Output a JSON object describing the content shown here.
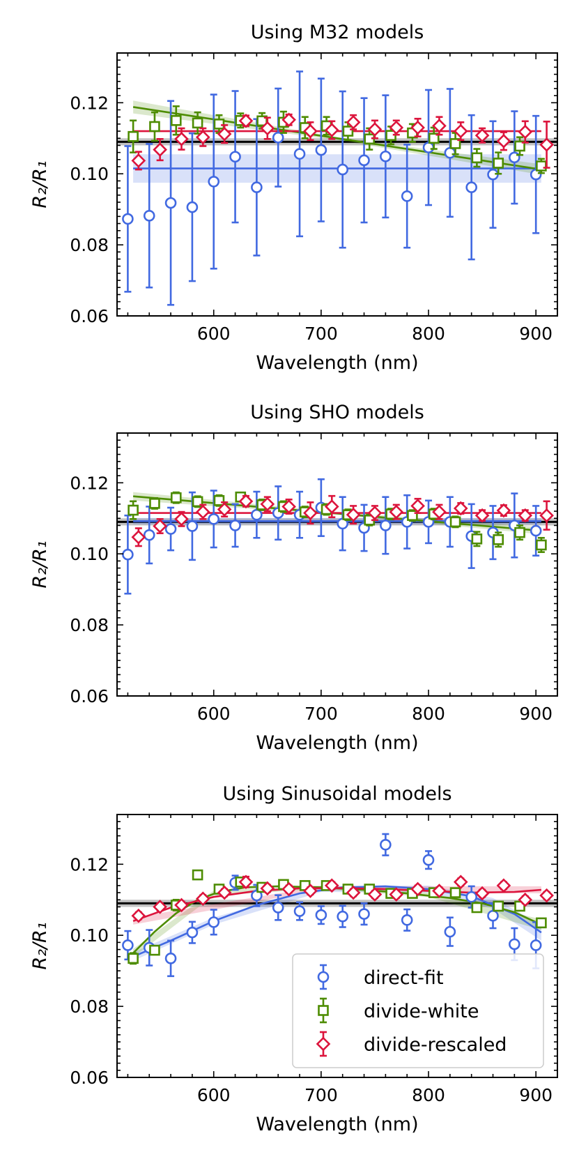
{
  "chart_data": [
    {
      "type": "scatter",
      "title": "Using M32 models",
      "xlabel": "Wavelength (nm)",
      "ylabel": "R2/R1",
      "xlim": [
        510,
        920
      ],
      "ylim": [
        0.06,
        0.134
      ],
      "xticks": [
        600,
        700,
        800,
        900
      ],
      "yticks": [
        0.06,
        0.08,
        0.1,
        0.12
      ],
      "ytick_labels": [
        "0.06",
        "0.08",
        "0.10",
        "0.12"
      ],
      "reference": {
        "value": 0.109,
        "band": [
          0.108,
          0.11
        ]
      },
      "series": [
        {
          "name": "direct-fit",
          "marker": "circle",
          "color": "#4169e1",
          "x": [
            520,
            540,
            560,
            580,
            600,
            620,
            640,
            660,
            680,
            700,
            720,
            740,
            760,
            780,
            800,
            820,
            840,
            860,
            880,
            900
          ],
          "y": [
            0.0873,
            0.0882,
            0.0918,
            0.0906,
            0.0978,
            0.1048,
            0.0962,
            0.1102,
            0.1056,
            0.1067,
            0.1012,
            0.1038,
            0.1049,
            0.0937,
            0.1074,
            0.1059,
            0.0962,
            0.0998,
            0.1046,
            0.0998
          ],
          "err": [
            0.0205,
            0.0202,
            0.0287,
            0.0208,
            0.0245,
            0.0185,
            0.0192,
            0.0138,
            0.0232,
            0.0201,
            0.022,
            0.0175,
            0.0172,
            0.0145,
            0.0162,
            0.018,
            0.0203,
            0.015,
            0.013,
            0.0165
          ],
          "fit": {
            "x": [
              525,
              905
            ],
            "y": [
              0.1015,
              0.1015
            ]
          },
          "band": {
            "x": [
              525,
              905
            ],
            "lo": [
              0.0975,
              0.0975
            ],
            "hi": [
              0.1055,
              0.1055
            ]
          }
        },
        {
          "name": "divide-white",
          "marker": "square",
          "color": "#4d8c00",
          "x": [
            525,
            545,
            565,
            585,
            605,
            625,
            645,
            665,
            685,
            705,
            725,
            745,
            765,
            785,
            805,
            825,
            845,
            865,
            885,
            905
          ],
          "y": [
            0.1105,
            0.1133,
            0.115,
            0.1143,
            0.114,
            0.115,
            0.1149,
            0.1145,
            0.113,
            0.1135,
            0.112,
            0.1098,
            0.1108,
            0.1115,
            0.11,
            0.1085,
            0.1045,
            0.103,
            0.1078,
            0.1022
          ],
          "err": [
            0.0045,
            0.004,
            0.004,
            0.003,
            0.0025,
            0.002,
            0.0022,
            0.003,
            0.003,
            0.0025,
            0.0025,
            0.003,
            0.0025,
            0.0025,
            0.003,
            0.003,
            0.0025,
            0.003,
            0.0025,
            0.002
          ],
          "fit": {
            "x": [
              525,
              905
            ],
            "y": [
              0.1188,
              0.1012
            ]
          },
          "band": {
            "x": [
              525,
              715,
              905
            ],
            "lo": [
              0.117,
              0.1095,
              0.0997
            ],
            "hi": [
              0.1206,
              0.1103,
              0.1027
            ]
          }
        },
        {
          "name": "divide-rescaled",
          "marker": "diamond",
          "color": "#dc143c",
          "x": [
            530,
            550,
            570,
            590,
            610,
            630,
            650,
            670,
            690,
            710,
            730,
            750,
            770,
            790,
            810,
            830,
            850,
            870,
            890,
            910
          ],
          "y": [
            0.1037,
            0.1068,
            0.1098,
            0.1103,
            0.1112,
            0.1149,
            0.1128,
            0.1152,
            0.112,
            0.1123,
            0.1145,
            0.1125,
            0.113,
            0.113,
            0.1135,
            0.112,
            0.1108,
            0.1092,
            0.1118,
            0.1082
          ],
          "err": [
            0.0025,
            0.003,
            0.003,
            0.0025,
            0.0025,
            0.0015,
            0.003,
            0.0015,
            0.0025,
            0.0025,
            0.002,
            0.0025,
            0.002,
            0.0025,
            0.0025,
            0.0025,
            0.002,
            0.0025,
            0.003,
            0.0065
          ],
          "fit": {
            "x": [
              525,
              905
            ],
            "y": [
              0.112,
              0.112
            ]
          },
          "band": {
            "x": [
              525,
              905
            ],
            "lo": [
              0.1118,
              0.1118
            ],
            "hi": [
              0.1122,
              0.1122
            ]
          }
        }
      ]
    },
    {
      "type": "scatter",
      "title": "Using SHO models",
      "xlabel": "Wavelength (nm)",
      "ylabel": "R2/R1",
      "xlim": [
        510,
        920
      ],
      "ylim": [
        0.06,
        0.134
      ],
      "xticks": [
        600,
        700,
        800,
        900
      ],
      "yticks": [
        0.06,
        0.08,
        0.1,
        0.12
      ],
      "ytick_labels": [
        "0.06",
        "0.08",
        "0.10",
        "0.12"
      ],
      "reference": {
        "value": 0.109,
        "band": [
          0.108,
          0.11
        ]
      },
      "series": [
        {
          "name": "direct-fit",
          "marker": "circle",
          "color": "#4169e1",
          "x": [
            520,
            540,
            560,
            580,
            600,
            620,
            640,
            660,
            680,
            700,
            720,
            740,
            760,
            780,
            800,
            820,
            840,
            860,
            880,
            900
          ],
          "y": [
            0.0998,
            0.1053,
            0.107,
            0.1078,
            0.1098,
            0.108,
            0.111,
            0.1115,
            0.111,
            0.113,
            0.1085,
            0.1073,
            0.108,
            0.109,
            0.109,
            0.109,
            0.105,
            0.106,
            0.108,
            0.1065
          ],
          "err": [
            0.011,
            0.008,
            0.006,
            0.0095,
            0.008,
            0.006,
            0.0065,
            0.0075,
            0.0065,
            0.008,
            0.0075,
            0.0065,
            0.008,
            0.0075,
            0.006,
            0.007,
            0.009,
            0.0075,
            0.009,
            0.007
          ],
          "fit": {
            "x": [
              525,
              905
            ],
            "y": [
              0.1092,
              0.1092
            ]
          },
          "band": {
            "x": [
              525,
              905
            ],
            "lo": [
              0.1083,
              0.1083
            ],
            "hi": [
              0.1101,
              0.1101
            ]
          }
        },
        {
          "name": "divide-white",
          "marker": "square",
          "color": "#4d8c00",
          "x": [
            525,
            545,
            565,
            585,
            605,
            625,
            645,
            665,
            685,
            705,
            725,
            745,
            765,
            785,
            805,
            825,
            845,
            865,
            885,
            905
          ],
          "y": [
            0.1123,
            0.1142,
            0.1158,
            0.1147,
            0.115,
            0.116,
            0.1138,
            0.1133,
            0.1118,
            0.1125,
            0.111,
            0.1095,
            0.1112,
            0.1108,
            0.1112,
            0.109,
            0.1042,
            0.104,
            0.106,
            0.1025
          ],
          "err": [
            0.0025,
            0.0015,
            0.0015,
            0.0015,
            0.0015,
            0.001,
            0.0015,
            0.0015,
            0.0015,
            0.0015,
            0.0015,
            0.0015,
            0.0015,
            0.0015,
            0.0015,
            0.0015,
            0.002,
            0.002,
            0.002,
            0.002
          ],
          "fit": {
            "x": [
              525,
              905
            ],
            "y": [
              0.1162,
              0.1065
            ]
          },
          "band": {
            "x": [
              525,
              715,
              905
            ],
            "lo": [
              0.115,
              0.111,
              0.1055
            ],
            "hi": [
              0.1174,
              0.1118,
              0.1075
            ]
          }
        },
        {
          "name": "divide-rescaled",
          "marker": "diamond",
          "color": "#dc143c",
          "x": [
            530,
            550,
            570,
            590,
            610,
            630,
            650,
            670,
            690,
            710,
            730,
            750,
            770,
            790,
            810,
            830,
            850,
            870,
            890,
            910
          ],
          "y": [
            0.1047,
            0.1078,
            0.1098,
            0.1118,
            0.1125,
            0.1148,
            0.114,
            0.1133,
            0.1115,
            0.1133,
            0.111,
            0.1115,
            0.1118,
            0.1135,
            0.1118,
            0.1128,
            0.1108,
            0.1122,
            0.1108,
            0.1108
          ],
          "err": [
            0.0025,
            0.002,
            0.002,
            0.002,
            0.002,
            0.0015,
            0.002,
            0.002,
            0.003,
            0.003,
            0.0025,
            0.002,
            0.002,
            0.002,
            0.002,
            0.0015,
            0.0015,
            0.0015,
            0.0015,
            0.004
          ],
          "fit": {
            "x": [
              525,
              905
            ],
            "y": [
              0.1115,
              0.1115
            ]
          },
          "band": {
            "x": [
              525,
              905
            ],
            "lo": [
              0.1112,
              0.1112
            ],
            "hi": [
              0.1118,
              0.1118
            ]
          }
        }
      ]
    },
    {
      "type": "scatter",
      "title": "Using Sinusoidal models",
      "xlabel": "Wavelength (nm)",
      "ylabel": "R2/R1",
      "xlim": [
        510,
        920
      ],
      "ylim": [
        0.06,
        0.134
      ],
      "xticks": [
        600,
        700,
        800,
        900
      ],
      "yticks": [
        0.06,
        0.08,
        0.1,
        0.12
      ],
      "ytick_labels": [
        "0.06",
        "0.08",
        "0.10",
        "0.12"
      ],
      "reference": {
        "value": 0.109,
        "band": [
          0.108,
          0.11
        ]
      },
      "legend_position": "lower-right",
      "series": [
        {
          "name": "direct-fit",
          "marker": "circle",
          "color": "#4169e1",
          "x": [
            520,
            540,
            560,
            580,
            600,
            620,
            640,
            660,
            680,
            700,
            720,
            740,
            760,
            780,
            800,
            820,
            840,
            860,
            880,
            900
          ],
          "y": [
            0.0972,
            0.0965,
            0.0935,
            0.1008,
            0.1037,
            0.1148,
            0.1112,
            0.1078,
            0.1068,
            0.1057,
            0.1053,
            0.106,
            0.1255,
            0.1043,
            0.1212,
            0.101,
            0.1108,
            0.1055,
            0.0975,
            0.0972
          ],
          "err": [
            0.004,
            0.005,
            0.005,
            0.003,
            0.0035,
            0.002,
            0.003,
            0.0035,
            0.0025,
            0.0025,
            0.003,
            0.003,
            0.003,
            0.003,
            0.0025,
            0.004,
            0.003,
            0.0035,
            0.0045,
            0.0065
          ],
          "fit": {
            "x": [
              525,
              560,
              600,
              640,
              680,
              720,
              760,
              800,
              840,
              880,
              905
            ],
            "y": [
              0.094,
              0.0985,
              0.104,
              0.1085,
              0.1118,
              0.1135,
              0.1138,
              0.113,
              0.111,
              0.106,
              0.1008
            ]
          },
          "band": {
            "x": [
              525,
              600,
              700,
              800,
              860,
              905
            ],
            "lo": [
              0.0928,
              0.103,
              0.1122,
              0.112,
              0.1075,
              0.0985
            ],
            "hi": [
              0.0952,
              0.105,
              0.1138,
              0.114,
              0.1105,
              0.103
            ]
          }
        },
        {
          "name": "divide-white",
          "marker": "square",
          "color": "#4d8c00",
          "x": [
            525,
            545,
            565,
            585,
            605,
            625,
            645,
            665,
            685,
            705,
            725,
            745,
            765,
            785,
            805,
            825,
            845,
            865,
            885,
            905
          ],
          "y": [
            0.0935,
            0.0958,
            0.1085,
            0.117,
            0.113,
            0.115,
            0.1135,
            0.1143,
            0.114,
            0.114,
            0.113,
            0.113,
            0.1118,
            0.1118,
            0.112,
            0.112,
            0.1078,
            0.1082,
            0.1082,
            0.1035
          ],
          "err": [
            0.0015,
            0.001,
            0.0015,
            0.001,
            0.001,
            0.001,
            0.001,
            0.001,
            0.001,
            0.001,
            0.001,
            0.001,
            0.001,
            0.001,
            0.001,
            0.001,
            0.001,
            0.001,
            0.001,
            0.001
          ],
          "fit": {
            "x": [
              525,
              545,
              565,
              585,
              605,
              630,
              660,
              700,
              740,
              780,
              820,
              850,
              880,
              905
            ],
            "y": [
              0.095,
              0.101,
              0.1062,
              0.11,
              0.1122,
              0.1135,
              0.1138,
              0.1135,
              0.1128,
              0.1118,
              0.1105,
              0.109,
              0.1065,
              0.103
            ]
          },
          "band": {
            "x": [
              525,
              600,
              700,
              800,
              905
            ],
            "lo": [
              0.0938,
              0.1112,
              0.113,
              0.1108,
              0.1015
            ],
            "hi": [
              0.0962,
              0.1126,
              0.114,
              0.112,
              0.1045
            ]
          }
        },
        {
          "name": "divide-rescaled",
          "marker": "diamond",
          "color": "#dc143c",
          "x": [
            530,
            550,
            570,
            590,
            610,
            630,
            650,
            670,
            690,
            710,
            730,
            750,
            770,
            790,
            810,
            830,
            850,
            870,
            890,
            910
          ],
          "y": [
            0.1055,
            0.108,
            0.1085,
            0.1103,
            0.112,
            0.115,
            0.1132,
            0.113,
            0.1125,
            0.114,
            0.112,
            0.1115,
            0.1115,
            0.113,
            0.1125,
            0.115,
            0.1118,
            0.114,
            0.11,
            0.1112
          ],
          "err": [
            0.001,
            0.001,
            0.001,
            0.001,
            0.001,
            0.0015,
            0.001,
            0.001,
            0.001,
            0.001,
            0.001,
            0.001,
            0.001,
            0.001,
            0.001,
            0.001,
            0.001,
            0.001,
            0.001,
            0.001
          ],
          "fit": {
            "x": [
              525,
              560,
              600,
              640,
              680,
              720,
              760,
              800,
              840,
              880,
              905
            ],
            "y": [
              0.104,
              0.1078,
              0.1108,
              0.1125,
              0.1132,
              0.1133,
              0.113,
              0.1125,
              0.112,
              0.1122,
              0.1128
            ]
          },
          "band": {
            "x": [
              525,
              700,
              905
            ],
            "lo": [
              0.103,
              0.1128,
              0.1118
            ],
            "hi": [
              0.105,
              0.1138,
              0.1138
            ]
          }
        }
      ]
    }
  ]
}
